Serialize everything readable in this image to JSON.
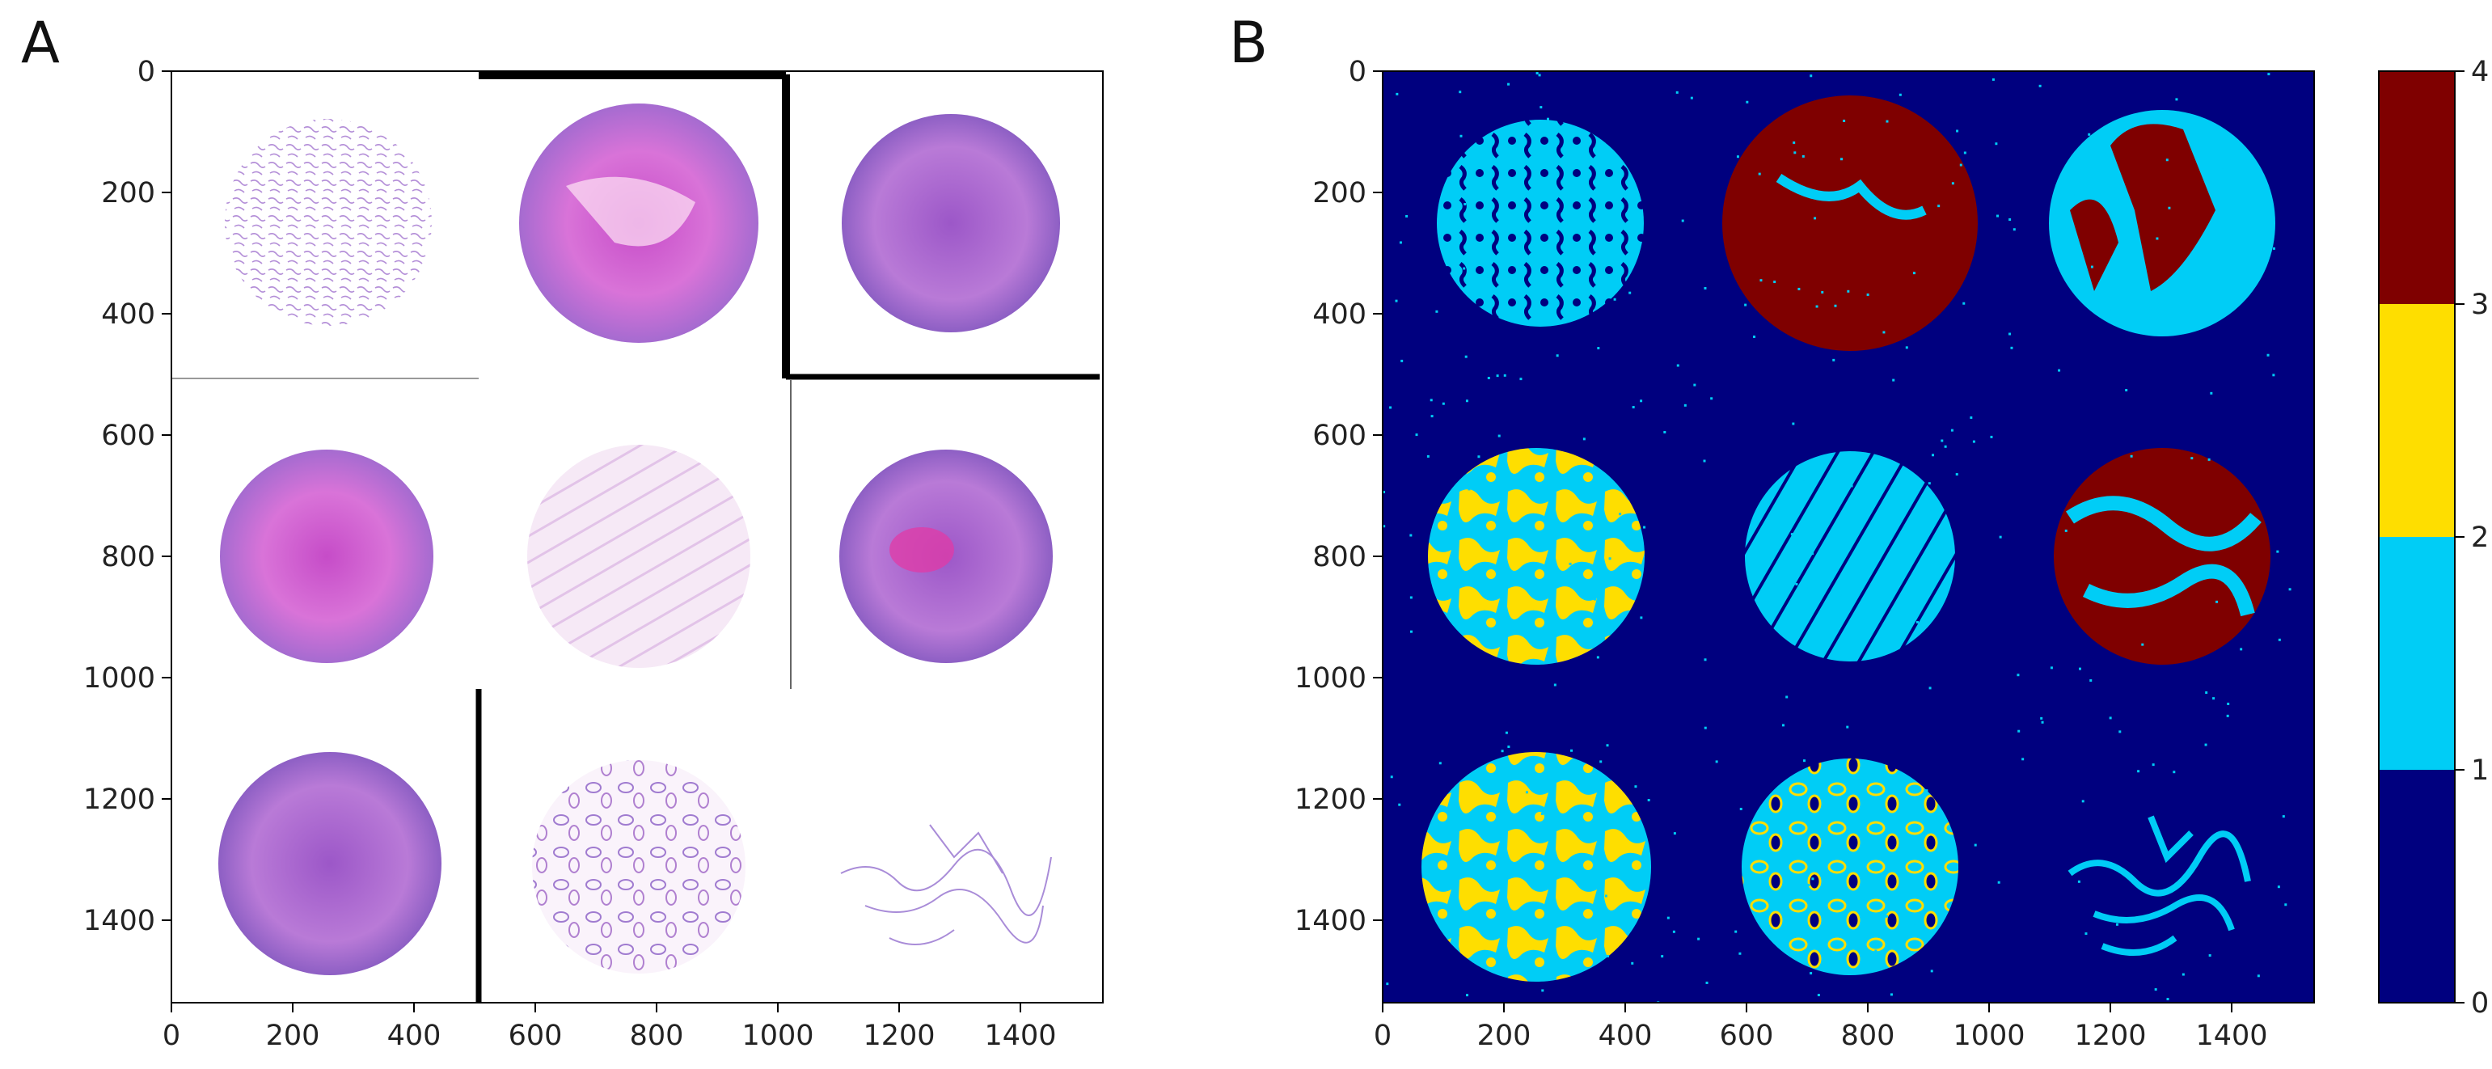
{
  "figure": {
    "panels": [
      {
        "id": "A",
        "label": "A",
        "kind": "image",
        "description_name": "he-stained-tissue-cores",
        "xaxis_ticks": [
          0,
          200,
          400,
          600,
          800,
          1000,
          1200,
          1400
        ],
        "yaxis_ticks": [
          0,
          200,
          400,
          600,
          800,
          1000,
          1200,
          1400
        ],
        "extent": [
          0,
          1536
        ]
      },
      {
        "id": "B",
        "label": "B",
        "kind": "label-map",
        "description_name": "cluster-label-map",
        "xaxis_ticks": [
          0,
          200,
          400,
          600,
          800,
          1000,
          1200,
          1400
        ],
        "yaxis_ticks": [
          0,
          200,
          400,
          600,
          800,
          1000,
          1200,
          1400
        ],
        "extent": [
          0,
          1536
        ]
      }
    ],
    "colorbar": {
      "ticks": [
        0,
        1,
        2,
        3,
        4
      ],
      "colors": [
        "#00007f",
        "#00cdf6",
        "#fede00",
        "#7f0000"
      ]
    }
  },
  "chart_data": [
    {
      "type": "heatmap",
      "title": "A",
      "xlabel": "",
      "ylabel": "",
      "xlim": [
        0,
        1536
      ],
      "ylim": [
        1536,
        0
      ],
      "xticks": [
        0,
        200,
        400,
        600,
        800,
        1000,
        1200,
        1400
      ],
      "yticks": [
        0,
        200,
        400,
        600,
        800,
        1000,
        1200,
        1400
      ],
      "content": "3x3 grid of H&E stained tissue cores"
    },
    {
      "type": "heatmap",
      "title": "B",
      "xlabel": "",
      "ylabel": "",
      "xlim": [
        0,
        1536
      ],
      "ylim": [
        1536,
        0
      ],
      "xticks": [
        0,
        200,
        400,
        600,
        800,
        1000,
        1200,
        1400
      ],
      "yticks": [
        0,
        200,
        400,
        600,
        800,
        1000,
        1200,
        1400
      ],
      "colorbar_ticks": [
        0,
        1,
        2,
        3,
        4
      ],
      "cores": [
        {
          "row": 0,
          "col": 0,
          "cx": 260,
          "cy": 250,
          "r": 170,
          "classes": [
            1
          ]
        },
        {
          "row": 0,
          "col": 1,
          "cx": 770,
          "cy": 250,
          "r": 210,
          "classes": [
            3,
            1
          ]
        },
        {
          "row": 0,
          "col": 2,
          "cx": 1265,
          "cy": 250,
          "r": 185,
          "classes": [
            1,
            3
          ]
        },
        {
          "row": 1,
          "col": 0,
          "cx": 250,
          "cy": 770,
          "r": 185,
          "classes": [
            1,
            2
          ]
        },
        {
          "row": 1,
          "col": 1,
          "cx": 770,
          "cy": 770,
          "r": 175,
          "classes": [
            1
          ]
        },
        {
          "row": 1,
          "col": 2,
          "cx": 1265,
          "cy": 770,
          "r": 175,
          "classes": [
            3,
            1
          ]
        },
        {
          "row": 2,
          "col": 0,
          "cx": 250,
          "cy": 1270,
          "r": 190,
          "classes": [
            1,
            2
          ]
        },
        {
          "row": 2,
          "col": 1,
          "cx": 770,
          "cy": 1270,
          "r": 175,
          "classes": [
            1,
            2
          ]
        },
        {
          "row": 2,
          "col": 2,
          "cx": 1265,
          "cy": 1270,
          "r": 165,
          "classes": [
            1
          ]
        }
      ]
    }
  ]
}
